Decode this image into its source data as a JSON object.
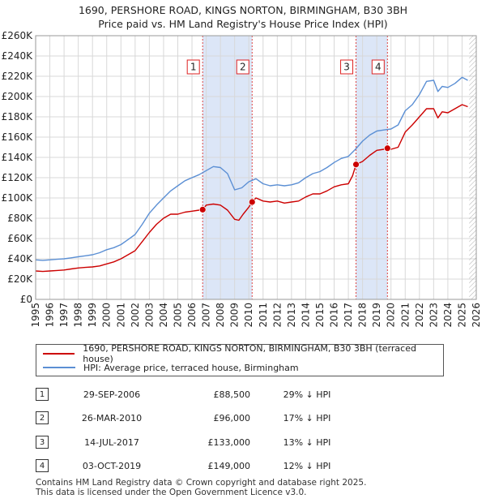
{
  "header": {
    "title": "1690, PERSHORE ROAD, KINGS NORTON, BIRMINGHAM, B30 3BH",
    "subtitle": "Price paid vs. HM Land Registry's House Price Index (HPI)"
  },
  "chart_data": {
    "type": "line",
    "title": "1690, PERSHORE ROAD, KINGS NORTON, BIRMINGHAM, B30 3BH",
    "subtitle": "Price paid vs. HM Land Registry's House Price Index (HPI)",
    "xlabel": "",
    "ylabel": "",
    "xlim": [
      1995,
      2026
    ],
    "ylim": [
      0,
      260000
    ],
    "grid": true,
    "y_ticks": [
      {
        "value": 0,
        "label": "£0"
      },
      {
        "value": 20000,
        "label": "£20K"
      },
      {
        "value": 40000,
        "label": "£40K"
      },
      {
        "value": 60000,
        "label": "£60K"
      },
      {
        "value": 80000,
        "label": "£80K"
      },
      {
        "value": 100000,
        "label": "£100K"
      },
      {
        "value": 120000,
        "label": "£120K"
      },
      {
        "value": 140000,
        "label": "£140K"
      },
      {
        "value": 160000,
        "label": "£160K"
      },
      {
        "value": 180000,
        "label": "£180K"
      },
      {
        "value": 200000,
        "label": "£200K"
      },
      {
        "value": 220000,
        "label": "£220K"
      },
      {
        "value": 240000,
        "label": "£240K"
      },
      {
        "value": 260000,
        "label": "£260K"
      }
    ],
    "x_ticks": [
      "1995",
      "1996",
      "1997",
      "1998",
      "1999",
      "2000",
      "2001",
      "2002",
      "2003",
      "2004",
      "2005",
      "2006",
      "2007",
      "2008",
      "2009",
      "2010",
      "2011",
      "2012",
      "2013",
      "2014",
      "2015",
      "2016",
      "2017",
      "2018",
      "2019",
      "2020",
      "2021",
      "2022",
      "2023",
      "2024",
      "2025",
      "2026"
    ],
    "colors": {
      "property": "#cc0000",
      "hpi": "#5b8fd4",
      "shade": "#dce6f7",
      "marker_line": "#dd4444",
      "grid": "#d8d8d8",
      "hatch": "#999999"
    },
    "shaded_ranges": [
      [
        2006.75,
        2010.23
      ],
      [
        2017.54,
        2019.75
      ]
    ],
    "hatch_from": 2025.5,
    "series": [
      {
        "name": "1690, PERSHORE ROAD, KINGS NORTON, BIRMINGHAM, B30 3BH (terraced house)",
        "x": [
          1995,
          1995.5,
          1996,
          1996.5,
          1997,
          1997.5,
          1998,
          1998.5,
          1999,
          1999.5,
          2000,
          2000.5,
          2001,
          2001.5,
          2002,
          2002.5,
          2003,
          2003.5,
          2004,
          2004.5,
          2005,
          2005.5,
          2006,
          2006.5,
          2006.75,
          2007,
          2007.5,
          2008,
          2008.5,
          2009,
          2009.3,
          2009.6,
          2010,
          2010.23,
          2010.5,
          2011,
          2011.5,
          2012,
          2012.5,
          2013,
          2013.5,
          2014,
          2014.5,
          2015,
          2015.5,
          2016,
          2016.5,
          2017,
          2017.3,
          2017.54,
          2018,
          2018.5,
          2019,
          2019.5,
          2019.75,
          2020,
          2020.5,
          2021,
          2021.5,
          2022,
          2022.5,
          2023,
          2023.3,
          2023.6,
          2024,
          2024.5,
          2025,
          2025.4
        ],
        "values": [
          28000,
          27500,
          28000,
          28500,
          29000,
          30000,
          31000,
          31500,
          32000,
          33000,
          35000,
          37000,
          40000,
          44000,
          48000,
          57000,
          66000,
          74000,
          80000,
          84000,
          84000,
          86000,
          87000,
          88000,
          88500,
          93000,
          94000,
          93000,
          88000,
          79000,
          78000,
          84000,
          91000,
          96000,
          100000,
          97000,
          96000,
          97000,
          95000,
          96000,
          97000,
          101000,
          104000,
          104000,
          107000,
          111000,
          113000,
          114000,
          122000,
          133000,
          136000,
          142000,
          147000,
          148000,
          149000,
          148000,
          150000,
          165000,
          172000,
          180000,
          188000,
          188000,
          179000,
          185000,
          184000,
          188000,
          192000,
          190000
        ]
      },
      {
        "name": "HPI: Average price, terraced house, Birmingham",
        "x": [
          1995,
          1995.5,
          1996,
          1996.5,
          1997,
          1997.5,
          1998,
          1998.5,
          1999,
          1999.5,
          2000,
          2000.5,
          2001,
          2001.5,
          2002,
          2002.5,
          2003,
          2003.5,
          2004,
          2004.5,
          2005,
          2005.5,
          2006,
          2006.5,
          2007,
          2007.5,
          2008,
          2008.5,
          2009,
          2009.5,
          2010,
          2010.5,
          2011,
          2011.5,
          2012,
          2012.5,
          2013,
          2013.5,
          2014,
          2014.5,
          2015,
          2015.5,
          2016,
          2016.5,
          2017,
          2017.5,
          2018,
          2018.5,
          2019,
          2019.5,
          2020,
          2020.5,
          2021,
          2021.5,
          2022,
          2022.5,
          2023,
          2023.3,
          2023.6,
          2024,
          2024.5,
          2025,
          2025.4
        ],
        "values": [
          39000,
          38500,
          39000,
          39500,
          40000,
          41000,
          42000,
          43000,
          44000,
          46000,
          49000,
          51000,
          54000,
          59000,
          64000,
          74000,
          85000,
          93000,
          100000,
          107000,
          112000,
          117000,
          120000,
          123000,
          127000,
          131000,
          130000,
          124000,
          108000,
          110000,
          116000,
          119000,
          114000,
          112000,
          113000,
          112000,
          113000,
          115000,
          120000,
          124000,
          126000,
          130000,
          135000,
          139000,
          141000,
          148000,
          156000,
          162000,
          166000,
          167000,
          168000,
          172000,
          186000,
          192000,
          202000,
          215000,
          216000,
          205000,
          210000,
          209000,
          213000,
          219000,
          216000
        ]
      }
    ],
    "sales": [
      {
        "id": "1",
        "x": 2006.75,
        "value": 88500
      },
      {
        "id": "2",
        "x": 2010.23,
        "value": 96000
      },
      {
        "id": "3",
        "x": 2017.54,
        "value": 133000
      },
      {
        "id": "4",
        "x": 2019.75,
        "value": 149000
      }
    ]
  },
  "legend": {
    "property_label": "1690, PERSHORE ROAD, KINGS NORTON, BIRMINGHAM, B30 3BH (terraced house)",
    "hpi_label": "HPI: Average price, terraced house, Birmingham"
  },
  "transactions": [
    {
      "id": "1",
      "date": "29-SEP-2006",
      "price": "£88,500",
      "hpi": "29% ↓ HPI"
    },
    {
      "id": "2",
      "date": "26-MAR-2010",
      "price": "£96,000",
      "hpi": "17% ↓ HPI"
    },
    {
      "id": "3",
      "date": "14-JUL-2017",
      "price": "£133,000",
      "hpi": "13% ↓ HPI"
    },
    {
      "id": "4",
      "date": "03-OCT-2019",
      "price": "£149,000",
      "hpi": "12% ↓ HPI"
    }
  ],
  "footer": {
    "line1": "Contains HM Land Registry data © Crown copyright and database right 2025.",
    "line2": "This data is licensed under the Open Government Licence v3.0."
  }
}
